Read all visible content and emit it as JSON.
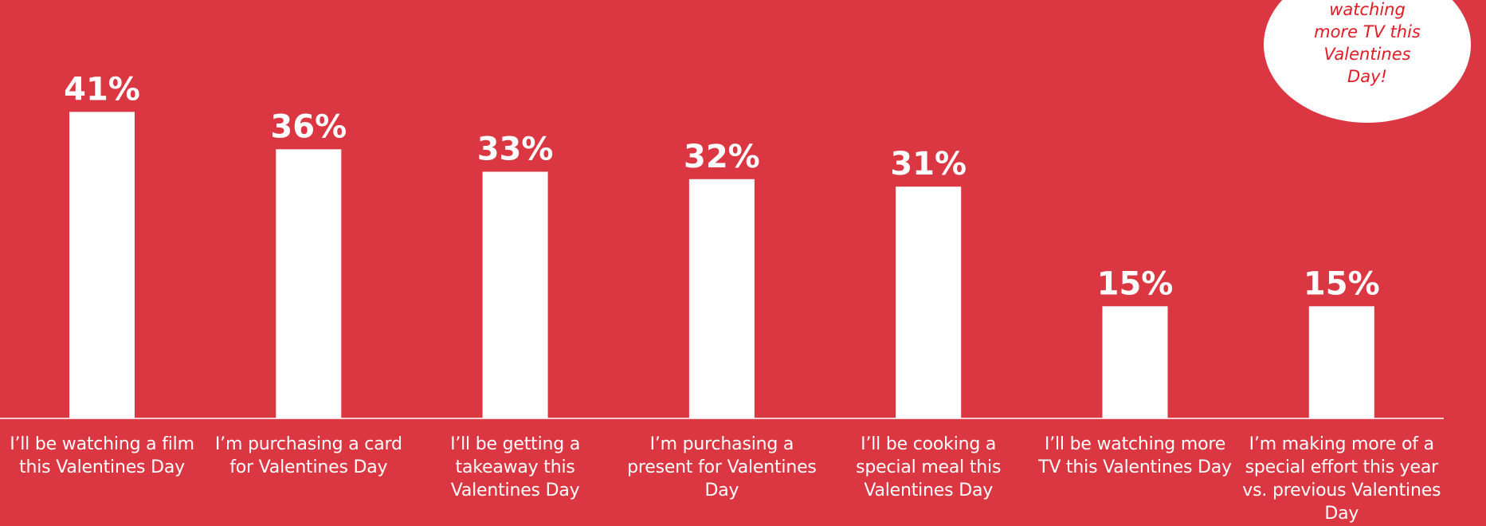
{
  "chart_data": {
    "type": "bar",
    "categories": [
      "I’ll be watching a film this Valentines Day",
      "I’m purchasing a card for Valentines Day",
      "I’ll be getting a takeaway this Valentines Day",
      "I’m purchasing a present for Valentines Day",
      "I’ll be cooking a special meal this Valentines Day",
      "I’ll be watching more TV this Valentines Day",
      "I’m making more of a special effort this year vs. previous Valentines Day"
    ],
    "values": [
      41,
      36,
      33,
      32,
      31,
      15,
      15
    ],
    "value_labels": [
      "41%",
      "36%",
      "33%",
      "32%",
      "31%",
      "15%",
      "15%"
    ],
    "unit": "%",
    "ylim": [
      0,
      45
    ],
    "grid": false,
    "legend": "none",
    "title": "",
    "xlabel": "",
    "ylabel": ""
  },
  "callout": {
    "text": "will be watching more TV this Valentines Day!"
  },
  "colors": {
    "background": "#db3742",
    "bar": "#ffffff",
    "text": "#ffffff",
    "callout_bg": "#ffffff",
    "callout_text": "#e11b24"
  }
}
